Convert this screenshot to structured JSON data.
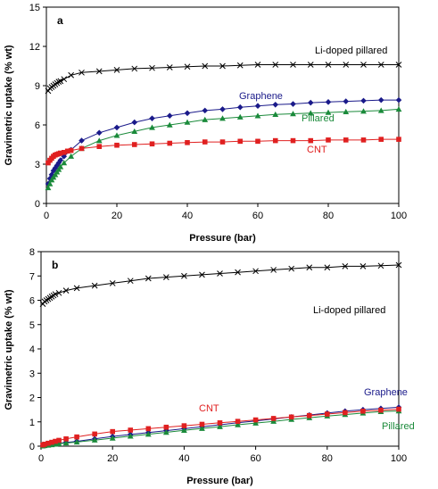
{
  "chart_data": [
    {
      "type": "line",
      "panel": "a",
      "xlabel": "Pressure (bar)",
      "ylabel": "Gravimetric uptake (% wt)",
      "xlim": [
        0,
        100
      ],
      "ylim": [
        0,
        15
      ],
      "xticks": [
        0,
        20,
        40,
        60,
        80,
        100
      ],
      "yticks": [
        0,
        3,
        6,
        9,
        12,
        15
      ],
      "grid": false,
      "series": [
        {
          "name": "Li-doped pillared",
          "color": "#000000",
          "marker": "x",
          "x": [
            0.5,
            1,
            1.5,
            2,
            2.5,
            3,
            3.5,
            4,
            5,
            7,
            10,
            15,
            20,
            25,
            30,
            35,
            40,
            45,
            50,
            55,
            60,
            65,
            70,
            75,
            80,
            85,
            90,
            95,
            100
          ],
          "y": [
            8.6,
            8.8,
            8.9,
            9.0,
            9.1,
            9.2,
            9.3,
            9.35,
            9.5,
            9.8,
            10.0,
            10.1,
            10.2,
            10.3,
            10.35,
            10.4,
            10.45,
            10.5,
            10.5,
            10.55,
            10.6,
            10.6,
            10.6,
            10.6,
            10.6,
            10.6,
            10.6,
            10.6,
            10.6
          ]
        },
        {
          "name": "Graphene",
          "color": "#1a1a8a",
          "marker": "diamond",
          "x": [
            0.5,
            1,
            1.5,
            2,
            2.5,
            3,
            3.5,
            4,
            5,
            7,
            10,
            15,
            20,
            25,
            30,
            35,
            40,
            45,
            50,
            55,
            60,
            65,
            70,
            75,
            80,
            85,
            90,
            95,
            100
          ],
          "y": [
            1.5,
            1.9,
            2.2,
            2.5,
            2.7,
            2.9,
            3.1,
            3.3,
            3.6,
            4.1,
            4.8,
            5.4,
            5.8,
            6.2,
            6.5,
            6.7,
            6.9,
            7.1,
            7.2,
            7.35,
            7.45,
            7.55,
            7.6,
            7.7,
            7.75,
            7.8,
            7.85,
            7.9,
            7.9
          ]
        },
        {
          "name": "Pillared",
          "color": "#1a8a3a",
          "marker": "triangle",
          "x": [
            0.5,
            1,
            1.5,
            2,
            2.5,
            3,
            3.5,
            4,
            5,
            7,
            10,
            15,
            20,
            25,
            30,
            35,
            40,
            45,
            50,
            55,
            60,
            65,
            70,
            75,
            80,
            85,
            90,
            95,
            100
          ],
          "y": [
            1.2,
            1.5,
            1.8,
            2.0,
            2.2,
            2.4,
            2.6,
            2.8,
            3.1,
            3.6,
            4.2,
            4.8,
            5.2,
            5.5,
            5.8,
            6.0,
            6.2,
            6.4,
            6.5,
            6.6,
            6.7,
            6.8,
            6.85,
            6.9,
            6.95,
            7.0,
            7.05,
            7.1,
            7.2
          ]
        },
        {
          "name": "CNT",
          "color": "#e02020",
          "marker": "square",
          "x": [
            0.5,
            1,
            1.5,
            2,
            2.5,
            3,
            3.5,
            4,
            5,
            6,
            7,
            10,
            15,
            20,
            25,
            30,
            35,
            40,
            45,
            50,
            55,
            60,
            65,
            70,
            75,
            80,
            85,
            90,
            95,
            100
          ],
          "y": [
            3.1,
            3.3,
            3.45,
            3.6,
            3.7,
            3.75,
            3.8,
            3.85,
            3.9,
            4.0,
            4.05,
            4.2,
            4.35,
            4.45,
            4.5,
            4.55,
            4.6,
            4.65,
            4.7,
            4.7,
            4.75,
            4.75,
            4.8,
            4.8,
            4.8,
            4.85,
            4.85,
            4.85,
            4.9,
            4.9
          ]
        }
      ]
    },
    {
      "type": "line",
      "panel": "b",
      "xlabel": "Pressure (bar)",
      "ylabel": "Gravimetric uptake (% wt)",
      "xlim": [
        0,
        100
      ],
      "ylim": [
        0,
        8
      ],
      "xticks": [
        0,
        20,
        40,
        60,
        80,
        100
      ],
      "yticks": [
        0,
        1,
        2,
        3,
        4,
        5,
        6,
        7,
        8
      ],
      "grid": false,
      "series": [
        {
          "name": "Li-doped pillared",
          "color": "#000000",
          "marker": "x",
          "x": [
            0.5,
            1,
            1.5,
            2,
            2.5,
            3,
            3.5,
            4,
            5,
            7,
            10,
            15,
            20,
            25,
            30,
            35,
            40,
            45,
            50,
            55,
            60,
            65,
            70,
            75,
            80,
            85,
            90,
            95,
            100
          ],
          "y": [
            5.85,
            5.95,
            6.0,
            6.05,
            6.1,
            6.15,
            6.2,
            6.25,
            6.3,
            6.4,
            6.5,
            6.6,
            6.7,
            6.8,
            6.9,
            6.95,
            7.0,
            7.05,
            7.1,
            7.15,
            7.2,
            7.25,
            7.3,
            7.35,
            7.35,
            7.4,
            7.4,
            7.42,
            7.45
          ]
        },
        {
          "name": "Graphene",
          "color": "#1a1a8a",
          "marker": "diamond",
          "x": [
            0.5,
            1,
            2,
            3,
            4,
            5,
            7,
            10,
            15,
            20,
            25,
            30,
            35,
            40,
            45,
            50,
            55,
            60,
            65,
            70,
            75,
            80,
            85,
            90,
            95,
            100
          ],
          "y": [
            0.02,
            0.04,
            0.06,
            0.08,
            0.1,
            0.12,
            0.15,
            0.2,
            0.3,
            0.4,
            0.48,
            0.56,
            0.64,
            0.72,
            0.8,
            0.88,
            0.96,
            1.04,
            1.12,
            1.2,
            1.28,
            1.36,
            1.44,
            1.5,
            1.55,
            1.6
          ]
        },
        {
          "name": "Pillared",
          "color": "#1a8a3a",
          "marker": "triangle",
          "x": [
            0.5,
            1,
            2,
            3,
            4,
            5,
            7,
            10,
            15,
            20,
            25,
            30,
            35,
            40,
            45,
            50,
            55,
            60,
            65,
            70,
            75,
            80,
            85,
            90,
            95,
            100
          ],
          "y": [
            0.01,
            0.02,
            0.04,
            0.06,
            0.08,
            0.1,
            0.13,
            0.17,
            0.25,
            0.33,
            0.41,
            0.49,
            0.57,
            0.65,
            0.73,
            0.8,
            0.88,
            0.95,
            1.02,
            1.1,
            1.17,
            1.24,
            1.3,
            1.36,
            1.42,
            1.45
          ]
        },
        {
          "name": "CNT",
          "color": "#e02020",
          "marker": "square",
          "x": [
            0.5,
            1,
            2,
            3,
            4,
            5,
            7,
            10,
            15,
            20,
            25,
            30,
            35,
            40,
            45,
            50,
            55,
            60,
            65,
            70,
            75,
            80,
            85,
            90,
            95,
            100
          ],
          "y": [
            0.05,
            0.08,
            0.12,
            0.16,
            0.2,
            0.24,
            0.3,
            0.38,
            0.5,
            0.6,
            0.66,
            0.72,
            0.78,
            0.84,
            0.9,
            0.96,
            1.02,
            1.08,
            1.14,
            1.2,
            1.26,
            1.32,
            1.38,
            1.44,
            1.48,
            1.52
          ]
        }
      ]
    }
  ]
}
